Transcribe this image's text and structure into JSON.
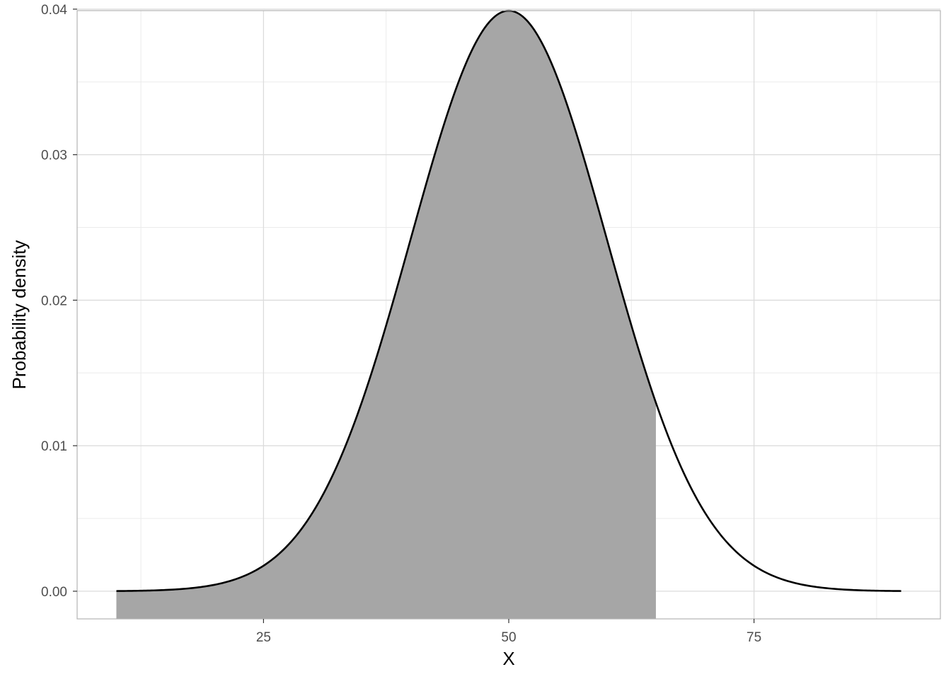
{
  "chart_data": {
    "type": "area",
    "xlabel": "X",
    "ylabel": "Probability density",
    "xlim": [
      6,
      94
    ],
    "ylim": [
      -0.0019,
      0.0399
    ],
    "x_ticks": [
      25,
      50,
      75
    ],
    "x_tick_labels": [
      "25",
      "50",
      "75"
    ],
    "x_minor_ticks": [
      12.5,
      37.5,
      62.5,
      87.5
    ],
    "y_ticks": [
      0.0,
      0.01,
      0.02,
      0.03,
      0.04
    ],
    "y_tick_labels": [
      "0.00",
      "0.01",
      "0.02",
      "0.03",
      "0.04"
    ],
    "y_minor_ticks": [
      0.005,
      0.015,
      0.025,
      0.035
    ],
    "grid": true,
    "series": [
      {
        "type": "line",
        "distribution": "normal",
        "mean": 50,
        "sd": 10,
        "x_range": [
          10,
          90
        ],
        "x": [
          10,
          15,
          20,
          25,
          30,
          35,
          40,
          45,
          50,
          55,
          60,
          65,
          70,
          75,
          80,
          85,
          90
        ],
        "y": [
          1e-05,
          9e-05,
          0.00044,
          0.00175,
          0.0054,
          0.01295,
          0.0242,
          0.0352,
          0.0399,
          0.0352,
          0.0242,
          0.01295,
          0.0054,
          0.00175,
          0.00044,
          9e-05,
          1e-05
        ],
        "color": "#000000"
      },
      {
        "type": "area",
        "distribution": "normal",
        "mean": 50,
        "sd": 10,
        "x_range": [
          10,
          65
        ],
        "fill": "#a6a6a6"
      }
    ]
  }
}
